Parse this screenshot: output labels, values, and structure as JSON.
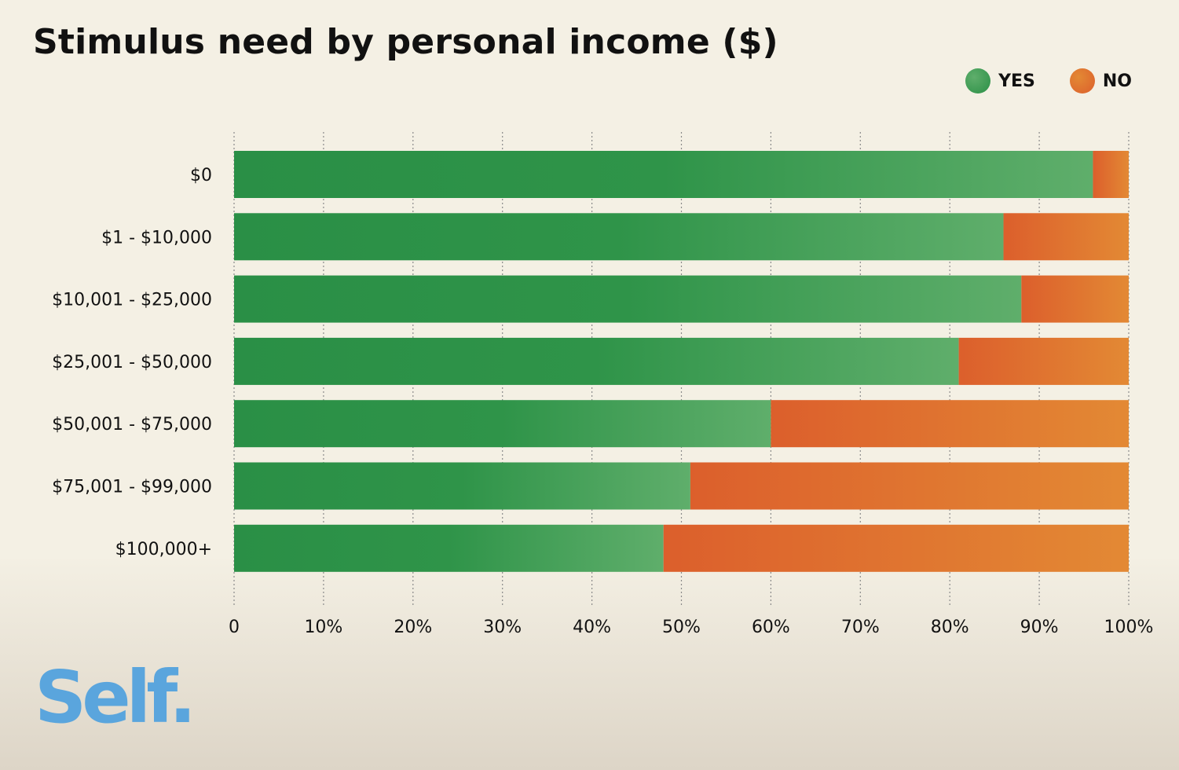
{
  "title": "Stimulus need by personal income ($)",
  "legend": {
    "yes_label": "YES",
    "no_label": "NO"
  },
  "brand": {
    "logo_text": "Self."
  },
  "colors": {
    "yes_dark": "#2a8f46",
    "yes_light": "#5fae6b",
    "no_dark": "#dc5f2c",
    "no_light": "#e38934",
    "text": "#111111",
    "logo": "#5aa5dd"
  },
  "chart_data": {
    "type": "bar",
    "orientation": "horizontal",
    "stacked": true,
    "categories": [
      "$0",
      "$1 - $10,000",
      "$10,001 - $25,000",
      "$25,001 - $50,000",
      "$50,001 - $75,000",
      "$75,001 - $99,000",
      "$100,000+"
    ],
    "series": [
      {
        "name": "YES",
        "values": [
          96,
          86,
          88,
          81,
          60,
          51,
          48
        ]
      },
      {
        "name": "NO",
        "values": [
          4,
          14,
          12,
          19,
          40,
          49,
          52
        ]
      }
    ],
    "x_ticks": [
      "0",
      "10%",
      "20%",
      "30%",
      "40%",
      "50%",
      "60%",
      "70%",
      "80%",
      "90%",
      "100%"
    ],
    "xlim": [
      0,
      100
    ],
    "grid": "vertical dotted",
    "legend_position": "top-right"
  }
}
